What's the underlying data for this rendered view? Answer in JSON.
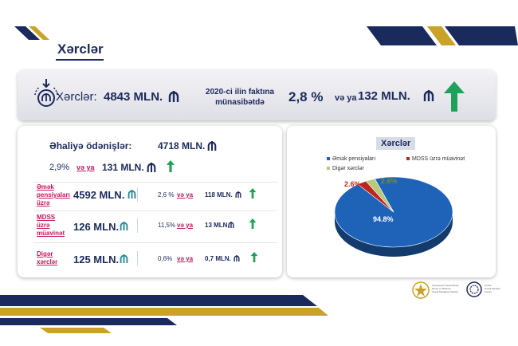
{
  "header": {
    "title": "Xərclər"
  },
  "summary": {
    "label": "Xərclər:",
    "value": "4843 MLN.",
    "comparison_line1": "2020-ci ilin faktına",
    "comparison_line2": "münasibətdə",
    "percent": "2,8 %",
    "or": "və ya",
    "amount": "132 MLN."
  },
  "population": {
    "label": "Əhaliyə ödənişlər:",
    "value": "4718 MLN.",
    "percent": "2,9%",
    "or": "və ya",
    "amount": "131 MLN."
  },
  "rows": [
    {
      "label_lines": [
        "Əmək",
        "pensiyaları",
        "üzrə"
      ],
      "value": "4592 MLN.",
      "percent": "2,6 %",
      "or": "və ya",
      "amount": "118 MLN."
    },
    {
      "label_lines": [
        "MDSS",
        "üzrə",
        "müavinət"
      ],
      "value": "126 MLN.",
      "percent": "11,5%",
      "or": "və ya",
      "amount": "13 MLN."
    },
    {
      "label_lines": [
        "Digər",
        "xərclər"
      ],
      "value": "125 MLN.",
      "percent": "0,6%",
      "or": "və ya",
      "amount": "0,7 MLN."
    }
  ],
  "chart_data": {
    "type": "pie",
    "title": "Xərclər",
    "labels": [
      "Əmək pensiyaları",
      "MDSS üzrə müavinət",
      "Digər xərclər"
    ],
    "values": [
      94.8,
      2.6,
      2.6
    ],
    "value_labels": [
      "94.8%",
      "2.6%",
      "2.6%"
    ],
    "colors": [
      "#1f63b8",
      "#c0241f",
      "#b9c97a"
    ],
    "legend_position": "top"
  },
  "logos": {
    "left_lines": [
      "Azərbaycan Respublikası",
      "Əmək və Əhalinin",
      "Sosial Müdafiəsi Nazirliyi"
    ],
    "right_lines": [
      "Dövlət",
      "Sosial Müdafiə",
      "Fondu"
    ]
  },
  "icons": {
    "currency": "manat-icon",
    "increase": "arrow-up-icon"
  },
  "colors": {
    "navy": "#1b2a5c",
    "gold": "#c9a227",
    "arrow_green": "#1ea25a",
    "accent_magenta": "#c2185b"
  }
}
